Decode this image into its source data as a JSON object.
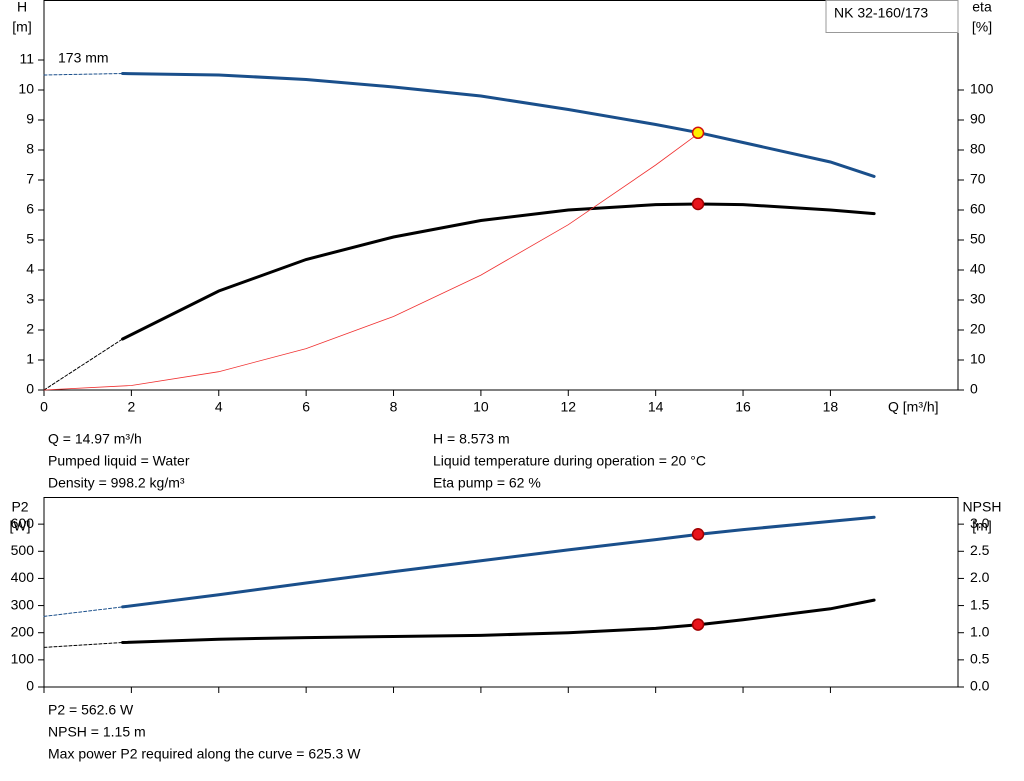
{
  "chart_data": [
    {
      "type": "line",
      "title": "NK 32-160/173",
      "ylabel": [
        "H",
        "[m]"
      ],
      "y2label": [
        "eta",
        "[%]"
      ],
      "xlabel": "Q [m³/h]",
      "annotations": [
        "173 mm"
      ],
      "xlim": [
        0,
        20.92
      ],
      "xticks": [
        0,
        2,
        4,
        6,
        8,
        10,
        12,
        14,
        16,
        18
      ],
      "ylim": [
        0,
        13
      ],
      "yticks": [
        0,
        1,
        2,
        3,
        4,
        5,
        6,
        7,
        8,
        9,
        10,
        11
      ],
      "y2lim": [
        0,
        130
      ],
      "y2ticks": [
        0,
        10,
        20,
        30,
        40,
        50,
        60,
        70,
        80,
        90,
        100
      ],
      "series": [
        {
          "color": "#1a4f8b",
          "dash": true,
          "width": 1,
          "x": [
            0,
            1.8
          ],
          "values": [
            10.5,
            10.55
          ]
        },
        {
          "color": "#1a4f8b",
          "width": 3,
          "x": [
            1.8,
            4,
            6,
            8,
            10,
            12,
            14,
            15,
            16,
            18,
            19
          ],
          "values": [
            10.55,
            10.5,
            10.35,
            10.1,
            9.8,
            9.35,
            8.85,
            8.573,
            8.25,
            7.6,
            7.12
          ]
        },
        {
          "color": "#000000",
          "dash": true,
          "width": 1,
          "axis": "y2",
          "x": [
            0,
            1.8
          ],
          "values": [
            0,
            17
          ]
        },
        {
          "color": "#000000",
          "width": 3,
          "axis": "y2",
          "x": [
            1.8,
            4,
            6,
            8,
            10,
            12,
            14,
            15,
            16,
            18,
            19
          ],
          "values": [
            17,
            33,
            43.5,
            51,
            56.5,
            60,
            61.8,
            62,
            61.8,
            60,
            58.8
          ]
        },
        {
          "color": "#f03030",
          "width": 0.8,
          "x": [
            0,
            2,
            4,
            6,
            8,
            10,
            12,
            14,
            15
          ],
          "values": [
            0,
            0.15,
            0.61,
            1.38,
            2.45,
            3.83,
            5.51,
            7.5,
            8.573
          ]
        }
      ],
      "points": [
        {
          "color": "#ffee00",
          "stroke": "#d01010",
          "x": 14.97,
          "value": 8.573
        },
        {
          "color": "#e8141b",
          "stroke": "#a00000",
          "axis": "y2",
          "x": 14.97,
          "value": 62
        }
      ],
      "notes": [
        [
          "Q = 14.97 m³/h",
          "Pumped liquid = Water",
          "Density = 998.2 kg/m³"
        ],
        [
          "H = 8.573 m",
          "Liquid temperature during operation = 20 °C",
          "Eta pump = 62 %"
        ]
      ]
    },
    {
      "type": "line",
      "ylabel": [
        "P2",
        "[W]"
      ],
      "y2label": [
        "NPSH",
        "[m]"
      ],
      "xlim": [
        0,
        20.92
      ],
      "xticks": [
        0,
        2,
        4,
        6,
        8,
        10,
        12,
        14,
        16,
        18
      ],
      "ylim": [
        0,
        700
      ],
      "yticks": [
        0,
        100,
        200,
        300,
        400,
        500,
        600
      ],
      "y2lim": [
        0,
        3.5
      ],
      "y2ticks": [
        {
          "value": 0,
          "label": "0.0"
        },
        0.5,
        {
          "value": 1,
          "label": "1.0"
        },
        1.5,
        {
          "value": 2,
          "label": "2.0"
        },
        2.5,
        {
          "value": 3,
          "label": "3.0"
        }
      ],
      "series": [
        {
          "color": "#1a4f8b",
          "dash": true,
          "width": 1,
          "x": [
            0,
            1.8
          ],
          "values": [
            260,
            295
          ]
        },
        {
          "color": "#1a4f8b",
          "width": 3,
          "x": [
            1.8,
            4,
            6,
            8,
            10,
            12,
            14,
            15,
            16,
            18,
            19
          ],
          "values": [
            295,
            340,
            383,
            425,
            465,
            505,
            543,
            562.6,
            580,
            610,
            625.3
          ]
        },
        {
          "color": "#000000",
          "dash": true,
          "width": 1,
          "axis": "y2",
          "x": [
            0,
            1.8
          ],
          "values": [
            0.73,
            0.82
          ]
        },
        {
          "color": "#000000",
          "width": 3,
          "axis": "y2",
          "x": [
            1.8,
            4,
            6,
            8,
            10,
            12,
            14,
            15,
            16,
            18,
            19
          ],
          "values": [
            0.82,
            0.88,
            0.91,
            0.93,
            0.95,
            1.0,
            1.08,
            1.15,
            1.24,
            1.44,
            1.6
          ]
        }
      ],
      "points": [
        {
          "color": "#e8141b",
          "stroke": "#a00000",
          "x": 14.97,
          "value": 562.6
        },
        {
          "color": "#e8141b",
          "stroke": "#a00000",
          "axis": "y2",
          "x": 14.97,
          "value": 1.15
        }
      ],
      "notes": [
        [
          "P2 = 562.6 W",
          "NPSH = 1.15 m",
          "Max power P2 required along the curve = 625.3 W"
        ]
      ]
    }
  ]
}
